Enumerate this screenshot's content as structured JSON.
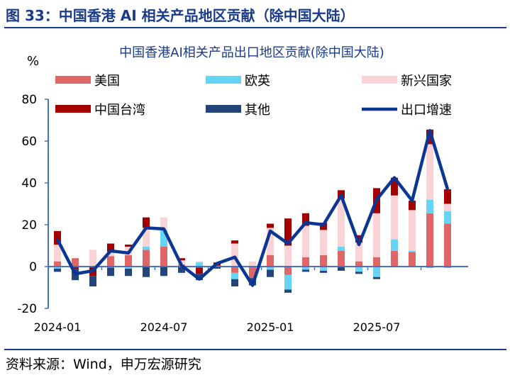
{
  "figure_title": "图 33：中国香港 AI 相关产品地区贡献（除中国大陆）",
  "source": "资料来源：Wind，申万宏源研究",
  "chart_data": {
    "type": "bar",
    "stacked": true,
    "title": "中国香港AI相关产品出口地区贡献(除中国大陆)",
    "ylabel": "%",
    "ylim": [
      -20,
      80
    ],
    "yticks": [
      -20,
      0,
      20,
      40,
      60,
      80
    ],
    "grid": false,
    "legend_position": "top",
    "categories": [
      "2024-01",
      "2024-02",
      "2024-03",
      "2024-04",
      "2024-05",
      "2024-06",
      "2024-07",
      "2024-08",
      "2024-09",
      "2024-10",
      "2024-11",
      "2024-12",
      "2025-01",
      "2025-02",
      "2025-03",
      "2025-04",
      "2025-05",
      "2025-06",
      "2025-07",
      "2025-08",
      "2025-09",
      "2025-10",
      "2025-11"
    ],
    "xtick_labels": [
      "2024-01",
      "2024-07",
      "2025-01",
      "2025-07"
    ],
    "series": [
      {
        "name": "美国",
        "type": "bar",
        "color": "#e06666",
        "values": [
          2.5,
          4,
          0,
          5,
          5.5,
          8,
          9.5,
          1,
          -0.5,
          0.5,
          -3,
          -5.5,
          5.5,
          -4,
          4.5,
          5.5,
          7.5,
          2.5,
          4.5,
          7.5,
          7,
          25.5,
          20.5
        ]
      },
      {
        "name": "欧英",
        "type": "bar",
        "color": "#66d4f5",
        "values": [
          -1,
          0,
          0,
          -0.5,
          -1,
          1.5,
          8,
          0,
          2,
          0,
          -3,
          0,
          -1.5,
          -7,
          -1.5,
          -2,
          2,
          -2.5,
          -5,
          5.5,
          0.5,
          6.5,
          6
        ]
      },
      {
        "name": "新兴国家",
        "type": "bar",
        "color": "#f9d3d5",
        "values": [
          8,
          0,
          8,
          2,
          4,
          9,
          6,
          2,
          0.5,
          0,
          11,
          2.5,
          13,
          10,
          15,
          12,
          23,
          9,
          21,
          21,
          19.5,
          26.5,
          3.5
        ]
      },
      {
        "name": "中国台湾",
        "type": "bar",
        "color": "#a50000",
        "values": [
          6.5,
          -1,
          -4.5,
          4,
          1,
          5,
          0,
          1,
          -3,
          1.5,
          1.5,
          0,
          2,
          13,
          6,
          3.5,
          4,
          3.5,
          12,
          8.5,
          4.5,
          7,
          7
        ]
      },
      {
        "name": "其他",
        "type": "bar",
        "color": "#23457a",
        "values": [
          -1.5,
          -5.5,
          -5,
          -4,
          -3.5,
          -5,
          -4.5,
          -3,
          -3,
          -1,
          -3.5,
          -3.5,
          -3.5,
          -1.5,
          -1,
          -1,
          -2,
          -1,
          -1,
          0,
          0,
          -0.5,
          -0.5
        ]
      },
      {
        "name": "出口增速",
        "type": "line",
        "color": "#0b3694",
        "values": [
          13,
          -3.5,
          -2,
          7.5,
          6.5,
          18.5,
          18,
          0.5,
          -6,
          1.5,
          4.5,
          -9,
          17,
          11,
          21,
          20,
          34,
          10.5,
          32,
          42.5,
          31.5,
          65,
          37
        ]
      }
    ]
  }
}
